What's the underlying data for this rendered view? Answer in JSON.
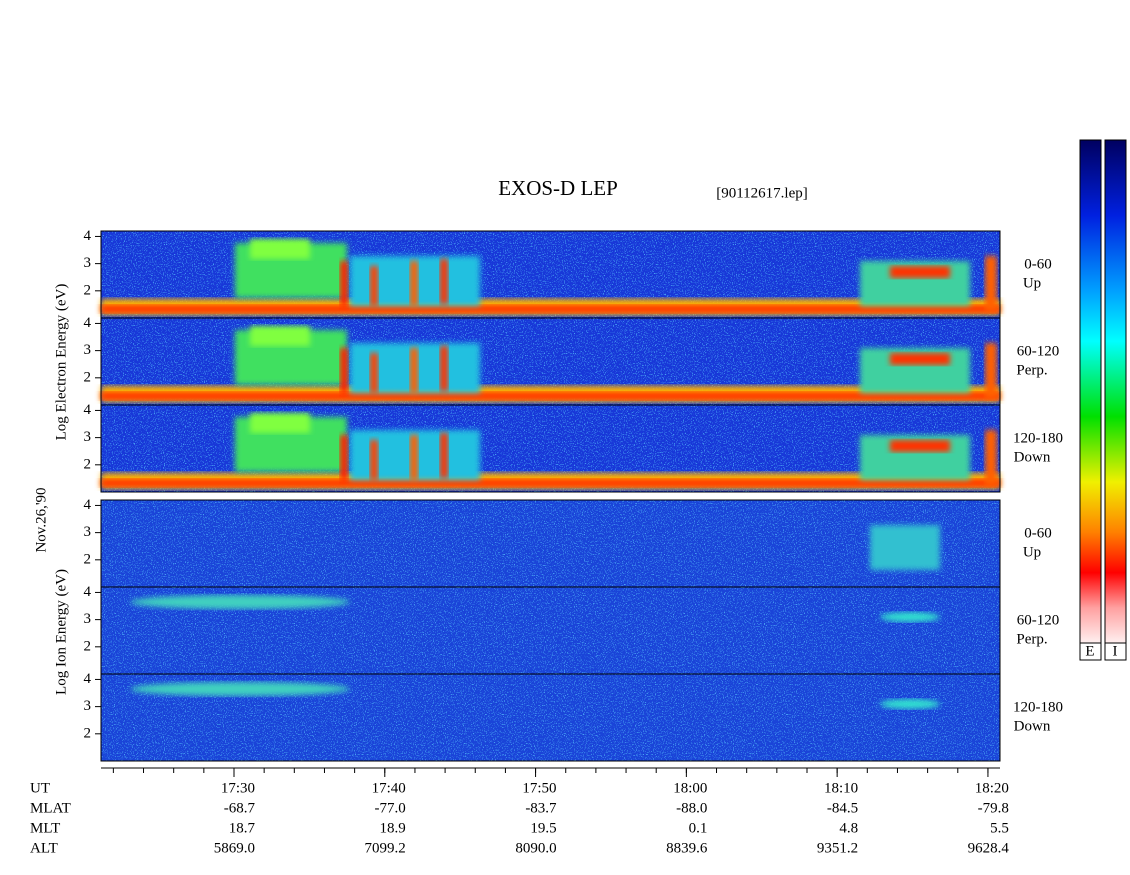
{
  "chart_data": {
    "type": "spectrogram",
    "title": "EXOS-D LEP",
    "file_label": "[90112617.lep]",
    "date_label": "Nov.26,'90",
    "electron_ylabel": "Log Electron Energy (eV)",
    "ion_ylabel": "Log Ion Energy (eV)",
    "ylim": [
      1,
      4.2
    ],
    "yticks": [
      2,
      3,
      4
    ],
    "electron_panels": [
      {
        "label": "0-60",
        "sublabel": "Up"
      },
      {
        "label": "60-120",
        "sublabel": "Perp."
      },
      {
        "label": "120-180",
        "sublabel": "Down"
      }
    ],
    "ion_panels": [
      {
        "label": "0-60",
        "sublabel": "Up"
      },
      {
        "label": "60-120",
        "sublabel": "Perp."
      },
      {
        "label": "120-180",
        "sublabel": "Down"
      }
    ],
    "xlim": [
      21.18,
      80.8
    ],
    "minor_xtick_step": 2,
    "xticks": [
      {
        "value": 30,
        "label": "17:30"
      },
      {
        "value": 40,
        "label": "17:40"
      },
      {
        "value": 50,
        "label": "17:50"
      },
      {
        "value": 60,
        "label": "18:00"
      },
      {
        "value": 70,
        "label": "18:10"
      },
      {
        "value": 80,
        "label": "18:20"
      }
    ],
    "x_row_label": "UT",
    "ephemeris": [
      {
        "label": "MLAT",
        "values": [
          "-68.7",
          "-77.0",
          "-83.7",
          "-88.0",
          "-84.5",
          "-79.8"
        ]
      },
      {
        "label": "MLT",
        "values": [
          "18.7",
          "18.9",
          "19.5",
          "0.1",
          "4.8",
          "5.5"
        ]
      },
      {
        "label": "ALT",
        "values": [
          "5869.0",
          "7099.2",
          "8090.0",
          "8839.6",
          "9351.2",
          "9628.4"
        ]
      }
    ],
    "colorbar_labels": [
      "E",
      "I"
    ]
  }
}
